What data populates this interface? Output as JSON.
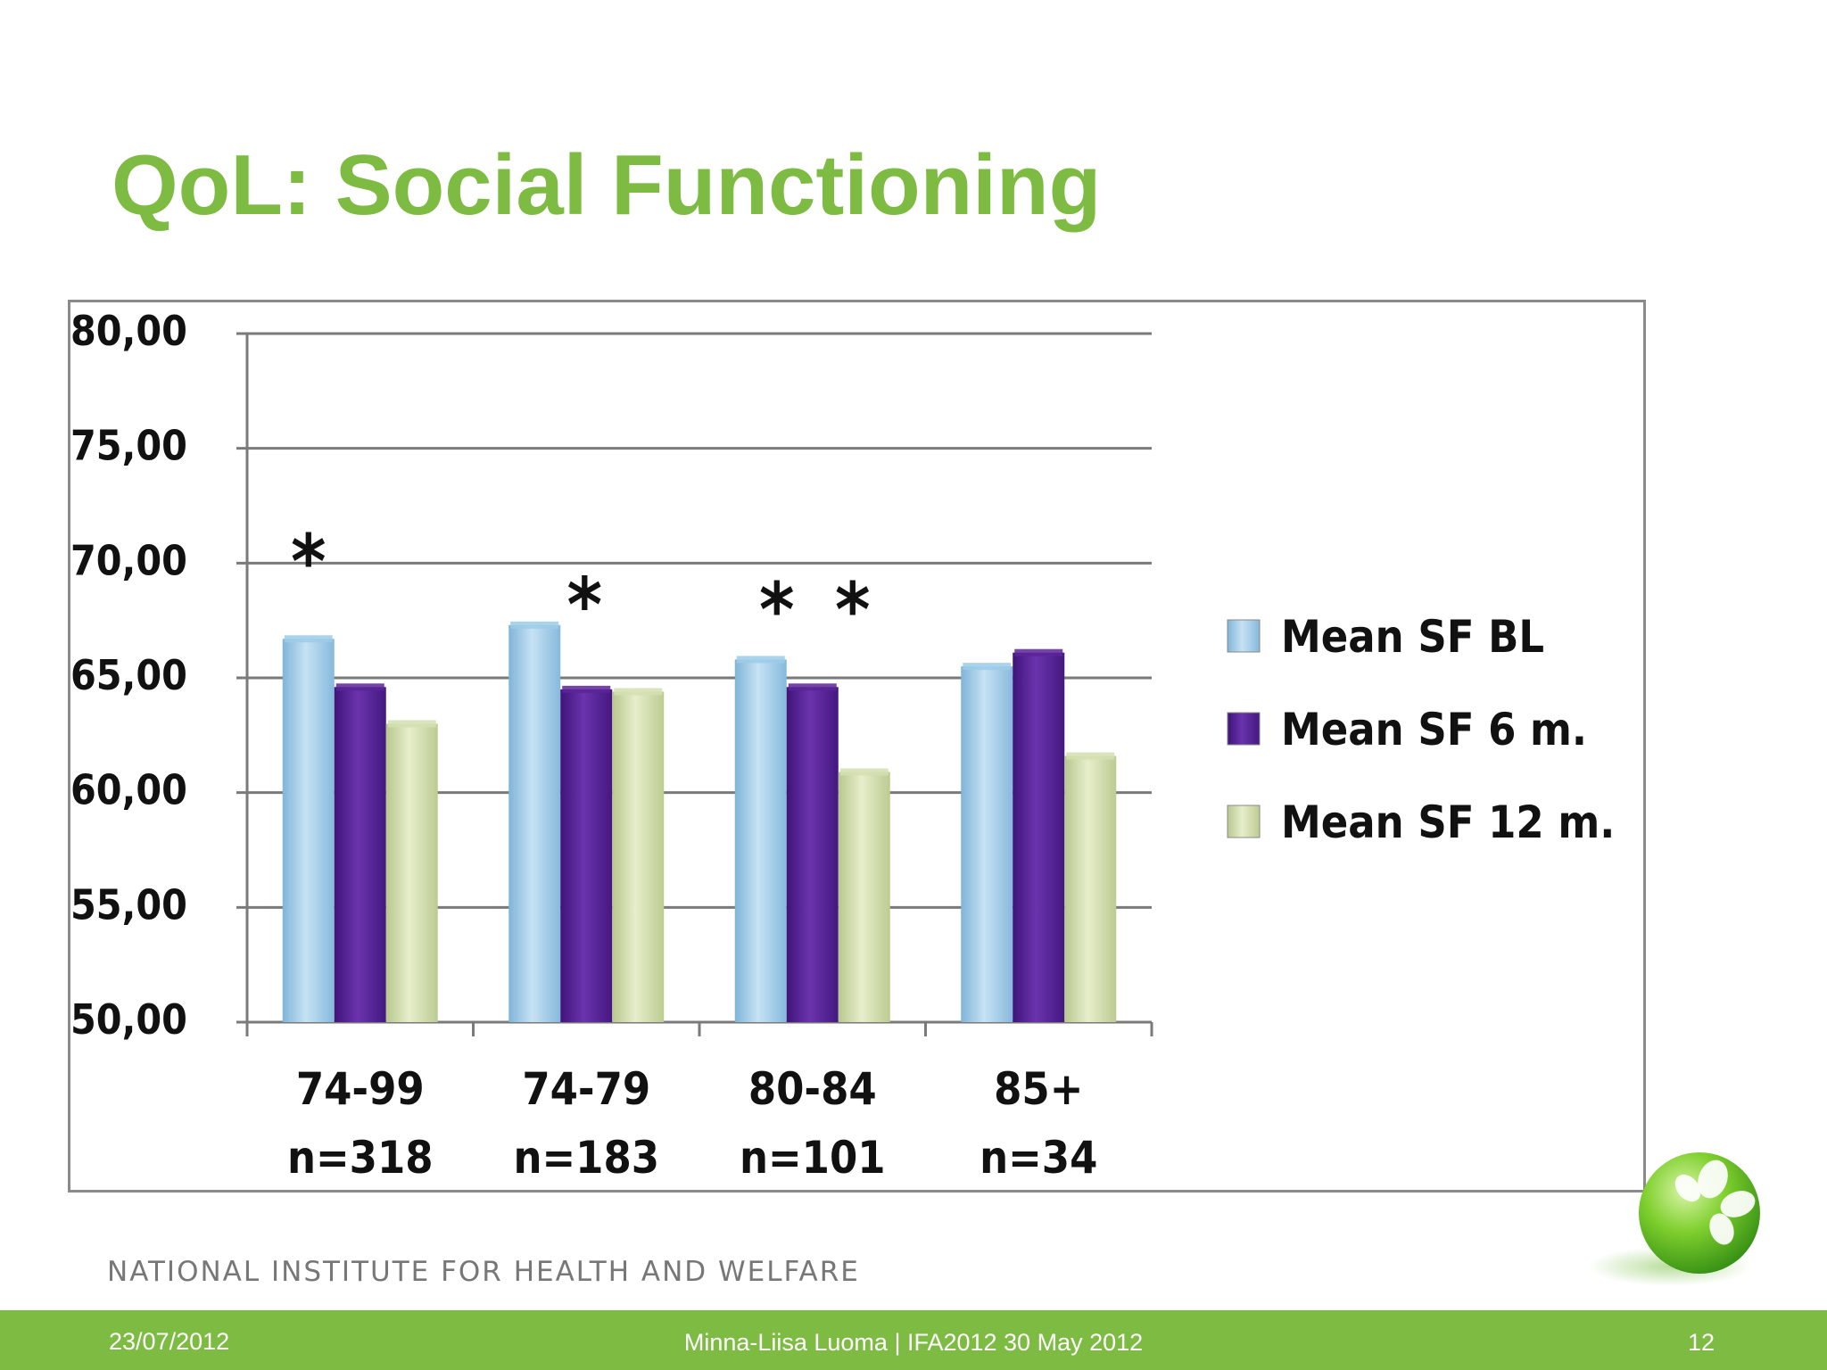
{
  "slide": {
    "title": "QoL: Social Functioning",
    "organization": "NATIONAL INSTITUTE FOR HEALTH AND WELFARE",
    "footer_date": "23/07/2012",
    "footer_center": "Minna-Liisa Luoma |  IFA2012  30 May  2012",
    "page_number": "12"
  },
  "chart_data": {
    "type": "bar",
    "title": "",
    "xlabel": "",
    "ylabel": "",
    "ylim": [
      50,
      80
    ],
    "yticks": [
      "80,00",
      "75,00",
      "70,00",
      "65,00",
      "60,00",
      "55,00",
      "50,00"
    ],
    "ytick_values": [
      80,
      75,
      70,
      65,
      60,
      55,
      50
    ],
    "grid": true,
    "legend_position": "right",
    "categories": [
      "74-99",
      "74-79",
      "80-84",
      "85+"
    ],
    "category_n": [
      "n=318",
      "n=183",
      "n=101",
      "n=34"
    ],
    "series": [
      {
        "name": "Mean SF BL",
        "color": "#9ccbe8",
        "values": [
          66.7,
          67.3,
          65.8,
          65.5
        ]
      },
      {
        "name": "Mean SF 6 m.",
        "color": "#5a2497",
        "values": [
          64.6,
          64.5,
          64.6,
          66.1
        ]
      },
      {
        "name": "Mean SF 12 m.",
        "color": "#d3dfb0",
        "values": [
          63.0,
          64.4,
          60.9,
          61.6
        ]
      }
    ],
    "annotations": [
      {
        "text": "*",
        "category": 0,
        "value": 70.1
      },
      {
        "text": "*",
        "category": 1,
        "value": 68.2
      },
      {
        "text": "*",
        "category": 2,
        "value": 68.0
      },
      {
        "text": "*",
        "category": 2,
        "value": 68.0
      }
    ]
  }
}
